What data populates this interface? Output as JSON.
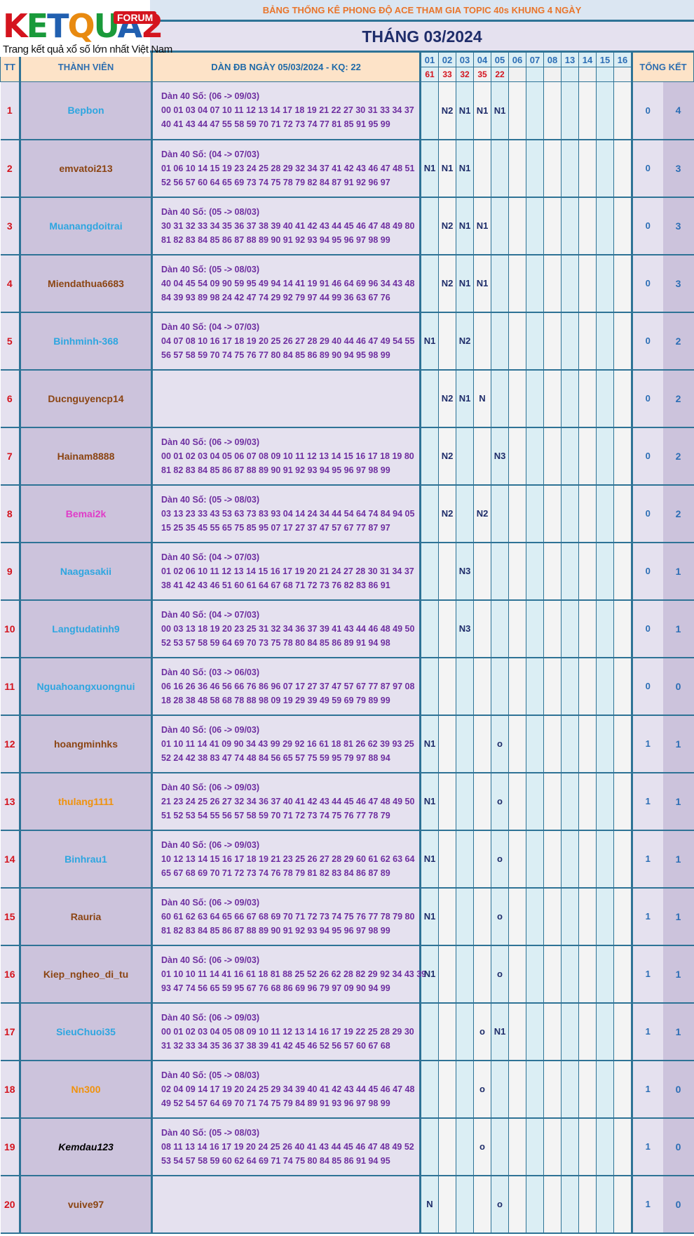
{
  "logo": {
    "brand": "KETQUA2",
    "forum": "FORUM",
    "tagline": "Trang kết quả xổ số lớn nhất Việt Nam"
  },
  "top_title": "BẢNG THỐNG KÊ PHONG ĐỘ ACE THAM GIA TOPIC 40s KHUNG 4 NGÀY",
  "month_title": "THÁNG 03/2024",
  "headers": {
    "tt": "TT",
    "member": "THÀNH VIÊN",
    "dan": "DÀN ĐB NGÀY 05/03/2024 - KQ: 22",
    "summary": "TỔNG KẾT"
  },
  "days": [
    "01",
    "02",
    "03",
    "04",
    "05",
    "06",
    "07",
    "08",
    "13",
    "14",
    "15",
    "16"
  ],
  "day_results": [
    "61",
    "33",
    "32",
    "35",
    "22",
    "",
    "",
    "",
    "",
    "",
    "",
    ""
  ],
  "rows": [
    {
      "tt": "1",
      "name": "Bepbon",
      "color": "#2ea6e0",
      "dan_title": "Dàn 40 Số: (06 -> 09/03)",
      "dan_line1": "00 01 03 04 07 10 11 12 13 14 17 18 19 21 22 27 30 31 33 34 37",
      "dan_line2": "40 41 43 44 47 55 58 59 70 71 72 73 74 77 81 85 91 95 99",
      "marks": [
        "",
        "N2",
        "N1",
        "N1",
        "N1",
        "",
        "",
        "",
        "",
        "",
        "",
        ""
      ],
      "s1": "0",
      "s2": "4"
    },
    {
      "tt": "2",
      "name": "emvatoi213",
      "color": "#8b4513",
      "dan_title": "Dàn 40 Số: (04 -> 07/03)",
      "dan_line1": "01 06 10 14 15 19 23 24 25 28 29 32 34 37 41 42 43 46 47 48 51",
      "dan_line2": "52 56 57 60 64 65 69 73 74 75 78 79 82 84 87 91 92 96 97",
      "marks": [
        "N1",
        "N1",
        "N1",
        "",
        "",
        "",
        "",
        "",
        "",
        "",
        "",
        ""
      ],
      "s1": "0",
      "s2": "3"
    },
    {
      "tt": "3",
      "name": "Muanangdoitrai",
      "color": "#2ea6e0",
      "dan_title": "Dàn 40 Số: (05 -> 08/03)",
      "dan_line1": "30 31 32 33 34 35 36 37 38 39 40 41 42 43 44 45 46 47 48 49 80",
      "dan_line2": "81 82 83 84 85 86 87 88 89 90 91 92 93 94 95 96 97 98 99",
      "marks": [
        "",
        "N2",
        "N1",
        "N1",
        "",
        "",
        "",
        "",
        "",
        "",
        "",
        ""
      ],
      "s1": "0",
      "s2": "3"
    },
    {
      "tt": "4",
      "name": "Miendathua6683",
      "color": "#8b4513",
      "dan_title": "Dàn 40 Số: (05 -> 08/03)",
      "dan_line1": "40 04 45 54 09 90 59 95 49 94 14 41 19 91 46 64 69 96 34 43 48",
      "dan_line2": "84 39 93 89 98 24 42 47 74 29 92 79 97 44 99 36 63 67 76",
      "marks": [
        "",
        "N2",
        "N1",
        "N1",
        "",
        "",
        "",
        "",
        "",
        "",
        "",
        ""
      ],
      "s1": "0",
      "s2": "3"
    },
    {
      "tt": "5",
      "name": "Binhminh-368",
      "color": "#2ea6e0",
      "dan_title": "Dàn 40 Số: (04 -> 07/03)",
      "dan_line1": "04 07 08 10 16 17 18 19 20 25 26 27 28 29 40 44 46 47 49 54 55",
      "dan_line2": "56 57 58 59 70 74 75 76 77 80 84 85 86 89 90 94 95 98 99",
      "marks": [
        "N1",
        "",
        "N2",
        "",
        "",
        "",
        "",
        "",
        "",
        "",
        "",
        ""
      ],
      "s1": "0",
      "s2": "2"
    },
    {
      "tt": "6",
      "name": "Ducnguyencp14",
      "color": "#8b4513",
      "dan_title": "",
      "dan_line1": "",
      "dan_line2": "",
      "marks": [
        "",
        "N2",
        "N1",
        "N",
        "",
        "",
        "",
        "",
        "",
        "",
        "",
        ""
      ],
      "s1": "0",
      "s2": "2"
    },
    {
      "tt": "7",
      "name": "Hainam8888",
      "color": "#8b4513",
      "dan_title": "Dàn 40 Số: (06 -> 09/03)",
      "dan_line1": "00 01 02 03 04 05 06 07 08 09 10 11 12 13 14 15 16 17 18 19 80",
      "dan_line2": "81 82 83 84 85 86 87 88 89 90 91 92 93 94 95 96 97 98 99",
      "marks": [
        "",
        "N2",
        "",
        "",
        "N3",
        "",
        "",
        "",
        "",
        "",
        "",
        ""
      ],
      "s1": "0",
      "s2": "2"
    },
    {
      "tt": "8",
      "name": "Bemai2k",
      "color": "#e03cc8",
      "dan_title": "Dàn 40 Số: (05 -> 08/03)",
      "dan_line1": "03 13 23 33 43 53 63 73 83 93 04 14 24 34 44 54 64 74 84 94 05",
      "dan_line2": "15 25 35 45 55 65 75 85 95 07 17 27 37 47 57 67 77 87 97",
      "marks": [
        "",
        "N2",
        "",
        "N2",
        "",
        "",
        "",
        "",
        "",
        "",
        "",
        ""
      ],
      "s1": "0",
      "s2": "2"
    },
    {
      "tt": "9",
      "name": "Naagasakii",
      "color": "#2ea6e0",
      "dan_title": "Dàn 40 Số: (04 -> 07/03)",
      "dan_line1": "01 02 06 10 11 12 13 14 15 16 17 19 20 21 24 27 28 30 31 34 37",
      "dan_line2": "38 41 42 43 46 51 60 61 64 67 68 71 72 73 76 82 83 86 91",
      "marks": [
        "",
        "",
        "N3",
        "",
        "",
        "",
        "",
        "",
        "",
        "",
        "",
        ""
      ],
      "s1": "0",
      "s2": "1"
    },
    {
      "tt": "10",
      "name": "Langtudatinh9",
      "color": "#2ea6e0",
      "dan_title": "Dàn 40 Số: (04 -> 07/03)",
      "dan_line1": "00 03 13 18 19 20 23 25 31 32 34 36 37 39 41 43 44 46 48 49 50",
      "dan_line2": "52 53 57 58 59 64 69 70 73 75 78 80 84 85 86 89 91 94 98",
      "marks": [
        "",
        "",
        "N3",
        "",
        "",
        "",
        "",
        "",
        "",
        "",
        "",
        ""
      ],
      "s1": "0",
      "s2": "1"
    },
    {
      "tt": "11",
      "name": "Nguahoangxuongnui",
      "color": "#2ea6e0",
      "dan_title": "Dàn 40 Số: (03 -> 06/03)",
      "dan_line1": "06 16 26 36 46 56 66 76 86 96 07 17 27 37 47 57 67 77 87 97 08",
      "dan_line2": "18 28 38 48 58 68 78 88 98 09 19 29 39 49 59 69 79 89 99",
      "marks": [
        "",
        "",
        "",
        "",
        "",
        "",
        "",
        "",
        "",
        "",
        "",
        ""
      ],
      "s1": "0",
      "s2": "0"
    },
    {
      "tt": "12",
      "name": "hoangminhks",
      "color": "#8b4513",
      "dan_title": "Dàn 40 Số: (06 -> 09/03)",
      "dan_line1": "01 10 11 14 41 09 90 34 43 99 29 92 16 61 18 81 26 62 39 93 25",
      "dan_line2": "52 24 42 38 83 47 74 48 84 56 65 57 75 59 95 79 97 88 94",
      "marks": [
        "N1",
        "",
        "",
        "",
        "o",
        "",
        "",
        "",
        "",
        "",
        "",
        ""
      ],
      "s1": "1",
      "s2": "1"
    },
    {
      "tt": "13",
      "name": "thulang1111",
      "color": "#f0920c",
      "dan_title": "Dàn 40 Số: (06 -> 09/03)",
      "dan_line1": "21 23 24 25 26 27 32 34 36 37 40 41 42 43 44 45 46 47 48 49 50",
      "dan_line2": "51 52 53 54 55 56 57 58 59 70 71 72 73 74 75 76 77 78 79",
      "marks": [
        "N1",
        "",
        "",
        "",
        "o",
        "",
        "",
        "",
        "",
        "",
        "",
        ""
      ],
      "s1": "1",
      "s2": "1"
    },
    {
      "tt": "14",
      "name": "Binhrau1",
      "color": "#2ea6e0",
      "dan_title": "Dàn 40 Số: (06 -> 09/03)",
      "dan_line1": "10 12 13 14 15 16 17 18 19 21 23 25 26 27 28 29 60 61 62 63 64",
      "dan_line2": "65 67 68 69 70 71 72 73 74 76 78 79 81 82 83 84 86 87 89",
      "marks": [
        "N1",
        "",
        "",
        "",
        "o",
        "",
        "",
        "",
        "",
        "",
        "",
        ""
      ],
      "s1": "1",
      "s2": "1"
    },
    {
      "tt": "15",
      "name": "Rauria",
      "color": "#8b4513",
      "dan_title": "Dàn 40 Số: (06 -> 09/03)",
      "dan_line1": "60 61 62 63 64 65 66 67 68 69 70 71 72 73 74 75 76 77 78 79 80",
      "dan_line2": "81 82 83 84 85 86 87 88 89 90 91 92 93 94 95 96 97 98 99",
      "marks": [
        "N1",
        "",
        "",
        "",
        "o",
        "",
        "",
        "",
        "",
        "",
        "",
        ""
      ],
      "s1": "1",
      "s2": "1"
    },
    {
      "tt": "16",
      "name": "Kiep_ngheo_di_tu",
      "color": "#8b4513",
      "dan_title": "Dàn 40 Số: (06 -> 09/03)",
      "dan_line1": "01 10 10 11 14 41 16 61 18 81 88 25 52 26 62 28 82 29 92 34 43 39",
      "dan_line2": "93 47 74 56 65 59 95 67 76 68 86 69 96 79 97 09 90 94 99",
      "marks": [
        "N1",
        "",
        "",
        "",
        "o",
        "",
        "",
        "",
        "",
        "",
        "",
        ""
      ],
      "s1": "1",
      "s2": "1"
    },
    {
      "tt": "17",
      "name": "SieuChuoi35",
      "color": "#2ea6e0",
      "dan_title": "Dàn 40 Số: (06 -> 09/03)",
      "dan_line1": "00 01 02 03 04 05 08 09 10 11 12 13 14 16 17 19 22 25 28 29 30",
      "dan_line2": "31 32 33 34 35 36 37 38 39 41 42 45 46 52 56 57 60 67 68",
      "marks": [
        "",
        "",
        "",
        "o",
        "N1",
        "",
        "",
        "",
        "",
        "",
        "",
        ""
      ],
      "s1": "1",
      "s2": "1"
    },
    {
      "tt": "18",
      "name": "Nn300",
      "color": "#f0920c",
      "dan_title": "Dàn 40 Số: (05 -> 08/03)",
      "dan_line1": "02 04 09 14 17 19 20 24 25 29 34 39 40 41 42 43 44 45 46 47 48",
      "dan_line2": "49 52 54 57 64 69 70 71 74 75 79 84 89 91 93 96 97 98 99",
      "marks": [
        "",
        "",
        "",
        "o",
        "",
        "",
        "",
        "",
        "",
        "",
        "",
        ""
      ],
      "s1": "1",
      "s2": "0"
    },
    {
      "tt": "19",
      "name": "Kemdau123",
      "color": "#000000",
      "dan_title": "Dàn 40 Số: (05 -> 08/03)",
      "dan_line1": "08 11 13 14 16 17 19 20 24 25 26 40 41 43 44 45 46 47 48 49 52",
      "dan_line2": "53 54 57 58 59 60 62 64 69 71 74 75 80 84 85 86 91 94 95",
      "marks": [
        "",
        "",
        "",
        "o",
        "",
        "",
        "",
        "",
        "",
        "",
        "",
        ""
      ],
      "s1": "1",
      "s2": "0"
    },
    {
      "tt": "20",
      "name": "vuive97",
      "color": "#8b4513",
      "dan_title": "",
      "dan_line1": "",
      "dan_line2": "",
      "marks": [
        "N",
        "",
        "",
        "",
        "o",
        "",
        "",
        "",
        "",
        "",
        "",
        ""
      ],
      "s1": "1",
      "s2": "0"
    }
  ]
}
